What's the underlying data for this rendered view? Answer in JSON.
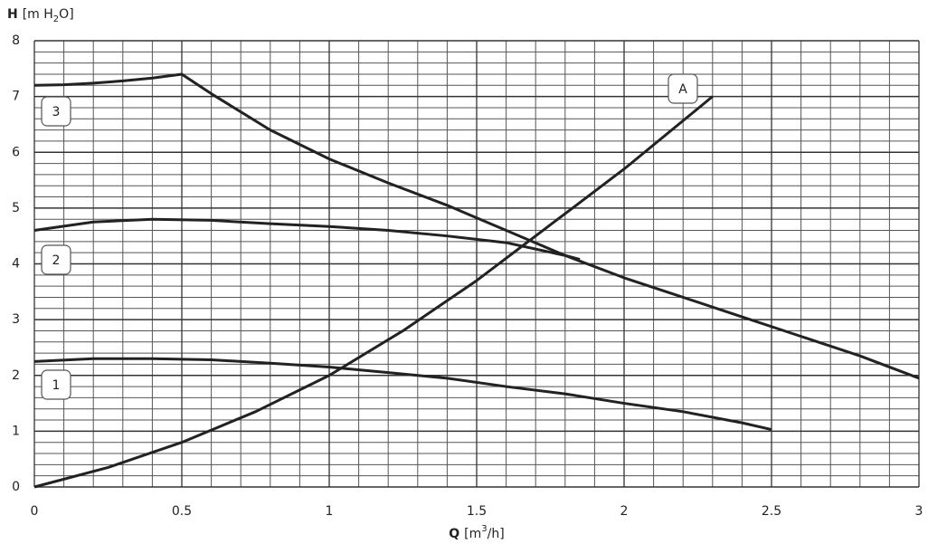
{
  "chart_data": {
    "type": "line",
    "y_label": {
      "symbol": "H",
      "parts": [
        "[m H",
        "2",
        "O]"
      ]
    },
    "x_label": {
      "symbol": "Q",
      "parts": [
        "[m",
        "3",
        "/h]"
      ]
    },
    "xlim": [
      0,
      3
    ],
    "ylim": [
      0,
      8
    ],
    "xticks": [
      0,
      0.5,
      1,
      1.5,
      2,
      2.5,
      3
    ],
    "yticks": [
      0,
      1,
      2,
      3,
      4,
      5,
      6,
      7,
      8
    ],
    "minor_xticks": [
      0.1,
      0.2,
      0.3,
      0.4,
      0.6,
      0.7,
      0.8,
      0.9,
      1.1,
      1.2,
      1.3,
      1.4,
      1.6,
      1.7,
      1.8,
      1.9,
      2.1,
      2.2,
      2.3,
      2.4,
      2.6,
      2.7,
      2.8,
      2.9
    ],
    "minor_yticks": [
      0.2,
      0.4,
      0.6,
      0.8,
      1.2,
      1.4,
      1.6,
      1.8,
      2.2,
      2.4,
      2.6,
      2.8,
      3.2,
      3.4,
      3.6,
      3.8,
      4.2,
      4.4,
      4.6,
      4.8,
      5.2,
      5.4,
      5.6,
      5.8,
      6.2,
      6.4,
      6.6,
      6.8,
      7.2,
      7.4,
      7.6,
      7.8
    ],
    "grid": true,
    "series": [
      {
        "name": "3",
        "color": "#222222",
        "x": [
          0,
          0.1,
          0.2,
          0.3,
          0.4,
          0.5,
          0.6,
          0.8,
          1.0,
          1.2,
          1.4,
          1.6,
          1.8,
          2.0,
          2.2,
          2.4,
          2.6,
          2.8,
          3.0
        ],
        "values": [
          7.2,
          7.21,
          7.24,
          7.28,
          7.33,
          7.4,
          7.05,
          6.4,
          5.88,
          5.45,
          5.05,
          4.6,
          4.15,
          3.75,
          3.4,
          3.05,
          2.7,
          2.35,
          1.95
        ]
      },
      {
        "name": "2",
        "color": "#222222",
        "x": [
          0,
          0.2,
          0.4,
          0.6,
          0.8,
          1.0,
          1.2,
          1.4,
          1.6,
          1.8,
          1.85
        ],
        "values": [
          4.6,
          4.75,
          4.8,
          4.78,
          4.72,
          4.67,
          4.6,
          4.5,
          4.38,
          4.15,
          4.08
        ]
      },
      {
        "name": "1",
        "color": "#222222",
        "x": [
          0,
          0.2,
          0.4,
          0.6,
          0.8,
          1.0,
          1.2,
          1.4,
          1.6,
          1.8,
          2.0,
          2.2,
          2.4,
          2.5
        ],
        "values": [
          2.25,
          2.3,
          2.3,
          2.28,
          2.22,
          2.15,
          2.05,
          1.95,
          1.8,
          1.67,
          1.5,
          1.35,
          1.15,
          1.03
        ]
      },
      {
        "name": "A",
        "color": "#222222",
        "x": [
          0,
          0.25,
          0.5,
          0.75,
          1.0,
          1.25,
          1.5,
          1.75,
          2.0,
          2.3
        ],
        "values": [
          0,
          0.35,
          0.8,
          1.35,
          2.0,
          2.8,
          3.7,
          4.7,
          5.7,
          7.0
        ]
      }
    ]
  }
}
